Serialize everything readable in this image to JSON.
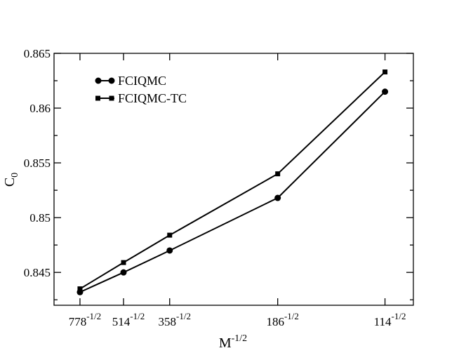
{
  "chart_data": {
    "type": "line",
    "xlabel": "M",
    "xlabel_sup": "-1/2",
    "ylabel": "C",
    "ylabel_sub": "0",
    "x_ticks": [
      {
        "base": "778",
        "exp": "-1/2",
        "value": 0.035853
      },
      {
        "base": "514",
        "exp": "-1/2",
        "value": 0.044108
      },
      {
        "base": "358",
        "exp": "-1/2",
        "value": 0.052852
      },
      {
        "base": "186",
        "exp": "-1/2",
        "value": 0.073324
      },
      {
        "base": "114",
        "exp": "-1/2",
        "value": 0.093659
      }
    ],
    "x": [
      0.035853,
      0.044108,
      0.052852,
      0.073324,
      0.093659
    ],
    "xlim": [
      0.030938,
      0.099035
    ],
    "ylim": [
      0.842,
      0.865
    ],
    "y_ticks": [
      {
        "label": "0.845",
        "value": 0.845
      },
      {
        "label": "0.85",
        "value": 0.85
      },
      {
        "label": "0.855",
        "value": 0.855
      },
      {
        "label": "0.86",
        "value": 0.86
      },
      {
        "label": "0.865",
        "value": 0.865
      }
    ],
    "y_minor_ticks": [
      0.8425,
      0.8475,
      0.8525,
      0.8575,
      0.8625
    ],
    "grid": false,
    "legend_position": "top-left",
    "series": [
      {
        "name": "FCIQMC",
        "marker": "circle",
        "color": "#000000",
        "values": [
          0.8432,
          0.845,
          0.847,
          0.8518,
          0.8615
        ]
      },
      {
        "name": "FCIQMC-TC",
        "marker": "square",
        "color": "#000000",
        "values": [
          0.8435,
          0.8459,
          0.8484,
          0.854,
          0.8633
        ]
      }
    ]
  }
}
